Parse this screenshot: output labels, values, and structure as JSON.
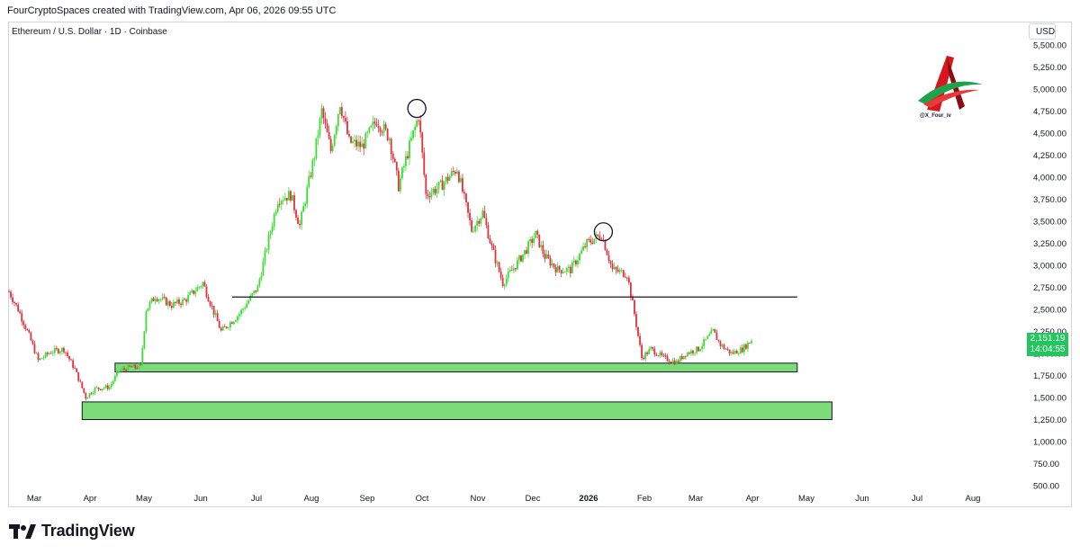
{
  "header": {
    "caption": "FourCryptoSpaces created with TradingView.com, Apr 06, 2026 09:55 UTC"
  },
  "chart": {
    "symbol_title": "Ethereum / U.S. Dollar · 1D · Coinbase",
    "currency": "USD",
    "watermark_handle": "@X_Four_iv",
    "current_price": "2,151.19",
    "countdown": "14:04:55",
    "colors": {
      "up": "#22ab94",
      "up_bright": "#3ddc33",
      "down": "#e0323c",
      "zone_fill": "#7ddc7a",
      "line": "#131722"
    }
  },
  "footer": {
    "brand": "TradingView"
  },
  "chart_data": {
    "type": "candlestick",
    "title": "Ethereum / U.S. Dollar · 1D · Coinbase",
    "y_unit": "USD",
    "y_ticks": [
      "5,500.00",
      "5,250.00",
      "5,000.00",
      "4,750.00",
      "4,500.00",
      "4,250.00",
      "4,000.00",
      "3,750.00",
      "3,500.00",
      "3,250.00",
      "3,000.00",
      "2,750.00",
      "2,500.00",
      "2,250.00",
      "2,000.00",
      "1,750.00",
      "1,500.00",
      "1,250.00",
      "1,000.00",
      "750.00",
      "500.00"
    ],
    "y_tick_values": [
      5500,
      5250,
      5000,
      4750,
      4500,
      4250,
      4000,
      3750,
      3500,
      3250,
      3000,
      2750,
      2500,
      2250,
      2000,
      1750,
      1500,
      1250,
      1000,
      750,
      500
    ],
    "x_ticks": [
      "Mar",
      "Apr",
      "May",
      "Jun",
      "Jul",
      "Aug",
      "Sep",
      "Oct",
      "Nov",
      "Dec",
      "2026",
      "Feb",
      "Mar",
      "Apr",
      "May",
      "Jun",
      "Jul",
      "Aug"
    ],
    "x_tick_bold": [
      false,
      false,
      false,
      false,
      false,
      false,
      false,
      false,
      false,
      false,
      true,
      false,
      false,
      false,
      false,
      false,
      false,
      false
    ],
    "price_path": [
      [
        "2025-02-24",
        2700
      ],
      [
        "2025-03-01",
        2500
      ],
      [
        "2025-03-07",
        2200
      ],
      [
        "2025-03-12",
        1920
      ],
      [
        "2025-03-19",
        2020
      ],
      [
        "2025-03-26",
        2050
      ],
      [
        "2025-04-01",
        1820
      ],
      [
        "2025-04-07",
        1500
      ],
      [
        "2025-04-12",
        1600
      ],
      [
        "2025-04-20",
        1620
      ],
      [
        "2025-04-25",
        1800
      ],
      [
        "2025-05-01",
        1840
      ],
      [
        "2025-05-07",
        1850
      ],
      [
        "2025-05-10",
        2500
      ],
      [
        "2025-05-15",
        2650
      ],
      [
        "2025-05-24",
        2550
      ],
      [
        "2025-05-31",
        2600
      ],
      [
        "2025-06-10",
        2800
      ],
      [
        "2025-06-20",
        2250
      ],
      [
        "2025-06-30",
        2450
      ],
      [
        "2025-07-10",
        2750
      ],
      [
        "2025-07-16",
        3300
      ],
      [
        "2025-07-21",
        3750
      ],
      [
        "2025-07-28",
        3800
      ],
      [
        "2025-08-02",
        3450
      ],
      [
        "2025-08-10",
        4250
      ],
      [
        "2025-08-14",
        4750
      ],
      [
        "2025-08-19",
        4300
      ],
      [
        "2025-08-24",
        4850
      ],
      [
        "2025-08-29",
        4400
      ],
      [
        "2025-09-05",
        4350
      ],
      [
        "2025-09-13",
        4650
      ],
      [
        "2025-09-20",
        4450
      ],
      [
        "2025-09-25",
        3900
      ],
      [
        "2025-10-01",
        4350
      ],
      [
        "2025-10-06",
        4700
      ],
      [
        "2025-10-10",
        3800
      ],
      [
        "2025-10-18",
        3900
      ],
      [
        "2025-10-27",
        4100
      ],
      [
        "2025-11-04",
        3400
      ],
      [
        "2025-11-10",
        3600
      ],
      [
        "2025-11-15",
        3200
      ],
      [
        "2025-11-21",
        2800
      ],
      [
        "2025-11-28",
        3000
      ],
      [
        "2025-12-03",
        3150
      ],
      [
        "2025-12-09",
        3350
      ],
      [
        "2025-12-14",
        3100
      ],
      [
        "2025-12-21",
        2950
      ],
      [
        "2025-12-28",
        2950
      ],
      [
        "2026-01-06",
        3250
      ],
      [
        "2026-01-14",
        3350
      ],
      [
        "2026-01-20",
        2950
      ],
      [
        "2026-01-28",
        2900
      ],
      [
        "2026-02-01",
        2450
      ],
      [
        "2026-02-05",
        1950
      ],
      [
        "2026-02-10",
        2050
      ],
      [
        "2026-02-17",
        1950
      ],
      [
        "2026-02-24",
        1900
      ],
      [
        "2026-03-01",
        2000
      ],
      [
        "2026-03-08",
        2050
      ],
      [
        "2026-03-16",
        2250
      ],
      [
        "2026-03-20",
        2100
      ],
      [
        "2026-03-26",
        2000
      ],
      [
        "2026-04-01",
        2050
      ],
      [
        "2026-04-06",
        2151
      ]
    ],
    "horizontal_line": {
      "from": "2025-06-26",
      "to": "2026-05-01",
      "value": 2640
    },
    "zones": [
      {
        "from": "2025-04-23",
        "to": "2026-05-01",
        "low": 1790,
        "high": 1890
      },
      {
        "from": "2025-04-05",
        "to": "2026-05-20",
        "low": 1250,
        "high": 1450
      }
    ],
    "circles": [
      {
        "date": "2025-10-05",
        "value": 4780
      },
      {
        "date": "2026-01-15",
        "value": 3380
      }
    ],
    "last_price": 2151.19
  }
}
